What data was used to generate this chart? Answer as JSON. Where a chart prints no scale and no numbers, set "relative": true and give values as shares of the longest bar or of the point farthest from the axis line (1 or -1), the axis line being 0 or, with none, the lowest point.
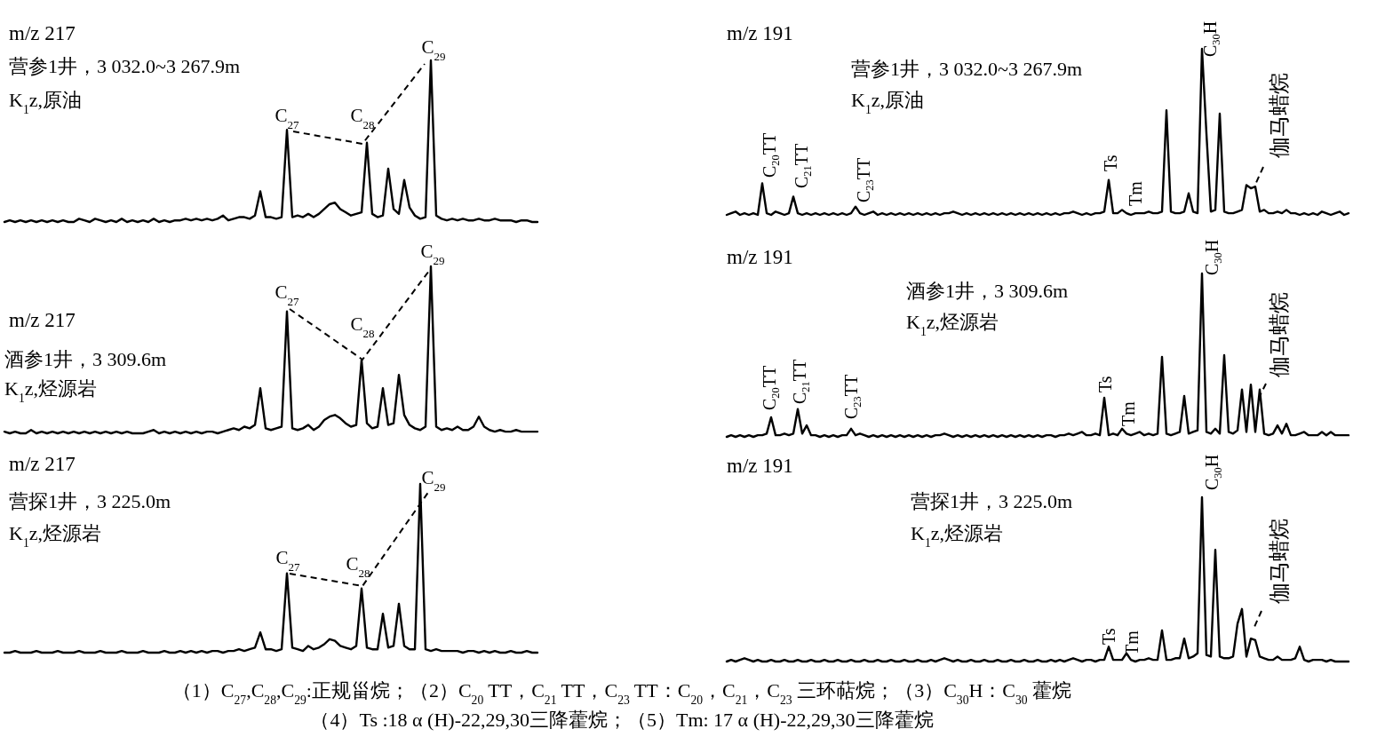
{
  "chart_data": [
    {
      "type": "line",
      "relative": true,
      "title": "m/z 217",
      "categories": [
        null,
        null,
        null,
        null,
        null,
        null,
        null,
        null,
        null,
        null,
        null,
        null,
        null,
        null,
        null,
        null,
        null,
        null,
        null,
        null,
        null,
        null,
        null,
        null,
        null,
        null,
        null,
        null,
        null,
        null,
        null,
        null,
        null,
        null,
        null,
        null,
        null,
        null,
        null,
        null,
        null,
        null,
        null,
        null,
        null,
        null,
        null,
        null,
        null,
        null,
        null,
        null,
        null,
        null,
        null,
        null,
        null,
        null,
        null,
        null,
        null,
        null,
        null,
        null,
        null,
        null,
        null,
        null,
        null,
        null,
        null,
        null,
        null,
        null,
        null,
        null,
        null,
        null,
        null,
        null,
        null,
        null,
        null,
        null,
        null,
        null,
        null,
        null,
        null,
        null,
        null,
        null,
        null,
        null,
        null,
        null,
        null,
        null,
        null,
        null,
        null
      ],
      "series": [
        {
          "color": "#000000",
          "values": [
            0.0,
            0.01,
            0.0,
            0.01,
            0.0,
            0.01,
            0.0,
            0.01,
            0.0,
            0.01,
            0.0,
            0.01,
            0.0,
            0.0,
            0.02,
            0.01,
            0.0,
            0.02,
            0.01,
            0.0,
            0.01,
            0.0,
            0.02,
            0.0,
            0.01,
            0.0,
            0.01,
            0.0,
            0.02,
            0.0,
            0.01,
            0.0,
            0.01,
            0.01,
            0.02,
            0.01,
            0.02,
            0.01,
            0.02,
            0.01,
            0.02,
            0.04,
            0.01,
            0.02,
            0.03,
            0.03,
            0.02,
            0.04,
            0.19,
            0.03,
            0.03,
            0.02,
            0.03,
            0.57,
            0.03,
            0.04,
            0.03,
            0.05,
            0.03,
            0.05,
            0.08,
            0.11,
            0.12,
            0.08,
            0.06,
            0.04,
            0.05,
            0.06,
            0.49,
            0.05,
            0.03,
            0.04,
            0.33,
            0.08,
            0.05,
            0.26,
            0.09,
            0.04,
            0.02,
            0.03,
            1.0,
            0.04,
            0.02,
            0.01,
            0.02,
            0.01,
            0.02,
            0.01,
            0.01,
            0.02,
            0.01,
            0.01,
            0.02,
            0.01,
            0.01,
            0.01,
            0.0,
            0.01,
            0.01,
            0.0,
            0.0
          ]
        }
      ],
      "annotations": [
        "营参1井，3 032.0~3 267.9m",
        "K$_{1}$z,原油",
        "C$_{27}$",
        "C$_{28}$",
        "C$_{29}$"
      ]
    },
    {
      "type": "line",
      "relative": true,
      "title": "m/z 191",
      "categories": [
        null,
        null,
        null,
        null,
        null,
        null,
        null,
        null,
        null,
        null,
        null,
        null,
        null,
        null,
        null,
        null,
        null,
        null,
        null,
        null,
        null,
        null,
        null,
        null,
        null,
        null,
        null,
        null,
        null,
        null,
        null,
        null,
        null,
        null,
        null,
        null,
        null,
        null,
        null,
        null,
        null,
        null,
        null,
        null,
        null,
        null,
        null,
        null,
        null,
        null,
        null,
        null,
        null,
        null,
        null,
        null,
        null,
        null,
        null,
        null,
        null,
        null,
        null,
        null,
        null,
        null,
        null,
        null,
        null,
        null,
        null,
        null,
        null,
        null,
        null,
        null,
        null,
        null,
        null,
        null,
        null,
        null,
        null,
        null,
        null,
        null,
        null,
        null,
        null,
        null,
        null,
        null,
        null,
        null,
        null,
        null,
        null,
        null,
        null,
        null,
        null,
        null,
        null,
        null,
        null,
        null,
        null,
        null,
        null,
        null,
        null,
        null,
        null,
        null,
        null,
        null,
        null,
        null,
        null,
        null,
        null,
        null,
        null,
        null,
        null,
        null,
        null,
        null,
        null,
        null,
        null,
        null,
        null,
        null,
        null,
        null,
        null,
        null,
        null,
        null,
        null
      ],
      "series": [
        {
          "color": "#000000",
          "values": [
            0.0,
            0.01,
            0.02,
            0.0,
            0.01,
            0.0,
            0.01,
            0.0,
            0.19,
            0.01,
            0.0,
            0.02,
            0.01,
            0.0,
            0.01,
            0.11,
            0.01,
            0.0,
            0.01,
            0.0,
            0.01,
            0.0,
            0.01,
            0.0,
            0.01,
            0.0,
            0.01,
            0.0,
            0.01,
            0.05,
            0.01,
            0.0,
            0.01,
            0.02,
            0.0,
            0.01,
            0.0,
            0.01,
            0.0,
            0.01,
            0.0,
            0.01,
            0.0,
            0.01,
            0.0,
            0.01,
            0.0,
            0.01,
            0.0,
            0.01,
            0.01,
            0.02,
            0.01,
            0.0,
            0.01,
            0.0,
            0.01,
            0.0,
            0.01,
            0.0,
            0.01,
            0.0,
            0.01,
            0.0,
            0.01,
            0.0,
            0.01,
            0.0,
            0.01,
            0.0,
            0.01,
            0.0,
            0.01,
            0.0,
            0.01,
            0.0,
            0.01,
            0.01,
            0.02,
            0.01,
            0.0,
            0.01,
            0.0,
            0.01,
            0.01,
            0.02,
            0.21,
            0.01,
            0.01,
            0.03,
            0.01,
            0.0,
            0.01,
            0.01,
            0.01,
            0.02,
            0.01,
            0.01,
            0.02,
            0.63,
            0.02,
            0.01,
            0.01,
            0.02,
            0.13,
            0.02,
            0.01,
            1.0,
            0.49,
            0.02,
            0.03,
            0.61,
            0.02,
            0.01,
            0.01,
            0.02,
            0.03,
            0.18,
            0.16,
            0.17,
            0.02,
            0.03,
            0.01,
            0.01,
            0.02,
            0.01,
            0.03,
            0.01,
            0.01,
            0.0,
            0.01,
            0.0,
            0.01,
            0.0,
            0.02,
            0.01,
            0.0,
            0.01,
            0.02,
            0.0,
            0.01
          ]
        }
      ],
      "annotations": [
        "营参1井，3 032.0~3 267.9m",
        "K$_{1}$z,原油",
        "C$_{20}$TT",
        "C$_{21}$TT",
        "C$_{23}$TT",
        "Ts",
        "Tm",
        "C$_{30}$H",
        "伽马蜡烷"
      ]
    },
    {
      "type": "line",
      "relative": true,
      "title": "m/z 217",
      "categories": [
        null,
        null,
        null,
        null,
        null,
        null,
        null,
        null,
        null,
        null,
        null,
        null,
        null,
        null,
        null,
        null,
        null,
        null,
        null,
        null,
        null,
        null,
        null,
        null,
        null,
        null,
        null,
        null,
        null,
        null,
        null,
        null,
        null,
        null,
        null,
        null,
        null,
        null,
        null,
        null,
        null,
        null,
        null,
        null,
        null,
        null,
        null,
        null,
        null,
        null,
        null,
        null,
        null,
        null,
        null,
        null,
        null,
        null,
        null,
        null,
        null,
        null,
        null,
        null,
        null,
        null,
        null,
        null,
        null,
        null,
        null,
        null,
        null,
        null,
        null,
        null,
        null,
        null,
        null,
        null,
        null,
        null,
        null,
        null,
        null,
        null,
        null,
        null,
        null,
        null,
        null,
        null,
        null,
        null,
        null,
        null,
        null,
        null,
        null,
        null,
        null
      ],
      "series": [
        {
          "color": "#000000",
          "values": [
            0.01,
            0.0,
            0.01,
            0.0,
            0.0,
            0.02,
            0.0,
            0.01,
            0.0,
            0.01,
            0.0,
            0.01,
            0.0,
            0.01,
            0.0,
            0.01,
            0.0,
            0.01,
            0.0,
            0.01,
            0.0,
            0.01,
            0.0,
            0.01,
            0.0,
            0.0,
            0.0,
            0.01,
            0.02,
            0.0,
            0.01,
            0.0,
            0.01,
            0.0,
            0.01,
            0.0,
            0.01,
            0.0,
            0.01,
            0.01,
            0.0,
            0.01,
            0.02,
            0.03,
            0.02,
            0.04,
            0.03,
            0.05,
            0.27,
            0.03,
            0.02,
            0.03,
            0.04,
            0.73,
            0.03,
            0.02,
            0.03,
            0.05,
            0.02,
            0.04,
            0.08,
            0.1,
            0.11,
            0.09,
            0.06,
            0.04,
            0.05,
            0.44,
            0.06,
            0.03,
            0.04,
            0.27,
            0.05,
            0.06,
            0.35,
            0.11,
            0.05,
            0.03,
            0.02,
            0.04,
            1.0,
            0.04,
            0.02,
            0.03,
            0.02,
            0.04,
            0.02,
            0.02,
            0.04,
            0.1,
            0.04,
            0.02,
            0.01,
            0.02,
            0.01,
            0.01,
            0.02,
            0.01,
            0.01,
            0.01,
            0.01
          ]
        }
      ],
      "annotations": [
        "酒参1井，3 309.6m",
        "K$_{1}$z,烃源岩",
        "C$_{27}$",
        "C$_{28}$",
        "C$_{29}$"
      ]
    },
    {
      "type": "line",
      "relative": true,
      "title": "m/z 191",
      "categories": [
        null,
        null,
        null,
        null,
        null,
        null,
        null,
        null,
        null,
        null,
        null,
        null,
        null,
        null,
        null,
        null,
        null,
        null,
        null,
        null,
        null,
        null,
        null,
        null,
        null,
        null,
        null,
        null,
        null,
        null,
        null,
        null,
        null,
        null,
        null,
        null,
        null,
        null,
        null,
        null,
        null,
        null,
        null,
        null,
        null,
        null,
        null,
        null,
        null,
        null,
        null,
        null,
        null,
        null,
        null,
        null,
        null,
        null,
        null,
        null,
        null,
        null,
        null,
        null,
        null,
        null,
        null,
        null,
        null,
        null,
        null,
        null,
        null,
        null,
        null,
        null,
        null,
        null,
        null,
        null,
        null,
        null,
        null,
        null,
        null,
        null,
        null,
        null,
        null,
        null,
        null,
        null,
        null,
        null,
        null,
        null,
        null,
        null,
        null,
        null,
        null,
        null,
        null,
        null,
        null,
        null,
        null,
        null,
        null,
        null,
        null,
        null,
        null,
        null,
        null,
        null,
        null,
        null,
        null,
        null,
        null,
        null,
        null,
        null,
        null,
        null,
        null,
        null,
        null,
        null,
        null,
        null,
        null,
        null,
        null,
        null,
        null,
        null,
        null,
        null,
        null
      ],
      "series": [
        {
          "color": "#000000",
          "values": [
            0.0,
            0.01,
            0.0,
            0.01,
            0.0,
            0.01,
            0.0,
            0.01,
            0.01,
            0.02,
            0.12,
            0.01,
            0.01,
            0.02,
            0.01,
            0.02,
            0.17,
            0.02,
            0.07,
            0.01,
            0.01,
            0.0,
            0.01,
            0.0,
            0.01,
            0.0,
            0.01,
            0.01,
            0.05,
            0.01,
            0.02,
            0.01,
            0.0,
            0.01,
            0.0,
            0.01,
            0.0,
            0.01,
            0.0,
            0.01,
            0.0,
            0.01,
            0.0,
            0.01,
            0.0,
            0.01,
            0.0,
            0.01,
            0.01,
            0.02,
            0.01,
            0.0,
            0.01,
            0.0,
            0.01,
            0.0,
            0.01,
            0.0,
            0.01,
            0.0,
            0.01,
            0.0,
            0.01,
            0.0,
            0.01,
            0.0,
            0.01,
            0.0,
            0.01,
            0.0,
            0.01,
            0.0,
            0.01,
            0.01,
            0.0,
            0.01,
            0.01,
            0.02,
            0.01,
            0.02,
            0.03,
            0.01,
            0.01,
            0.02,
            0.01,
            0.24,
            0.01,
            0.02,
            0.01,
            0.05,
            0.02,
            0.01,
            0.02,
            0.03,
            0.01,
            0.02,
            0.01,
            0.02,
            0.49,
            0.02,
            0.01,
            0.02,
            0.03,
            0.25,
            0.02,
            0.03,
            0.04,
            1.0,
            0.03,
            0.02,
            0.05,
            0.02,
            0.5,
            0.03,
            0.02,
            0.04,
            0.29,
            0.03,
            0.32,
            0.03,
            0.29,
            0.02,
            0.01,
            0.02,
            0.07,
            0.02,
            0.08,
            0.01,
            0.01,
            0.02,
            0.03,
            0.01,
            0.01,
            0.01,
            0.03,
            0.01,
            0.03,
            0.01,
            0.01,
            0.01,
            0.01
          ]
        }
      ],
      "annotations": [
        "酒参1井，3 309.6m",
        "K$_{1}$z,烃源岩",
        "C$_{20}$TT",
        "C$_{21}$TT",
        "C$_{23}$TT",
        "Ts",
        "Tm",
        "C$_{30}$H",
        "伽马蜡烷"
      ]
    },
    {
      "type": "line",
      "relative": true,
      "title": "m/z 217",
      "categories": [
        null,
        null,
        null,
        null,
        null,
        null,
        null,
        null,
        null,
        null,
        null,
        null,
        null,
        null,
        null,
        null,
        null,
        null,
        null,
        null,
        null,
        null,
        null,
        null,
        null,
        null,
        null,
        null,
        null,
        null,
        null,
        null,
        null,
        null,
        null,
        null,
        null,
        null,
        null,
        null,
        null,
        null,
        null,
        null,
        null,
        null,
        null,
        null,
        null,
        null,
        null,
        null,
        null,
        null,
        null,
        null,
        null,
        null,
        null,
        null,
        null,
        null,
        null,
        null,
        null,
        null,
        null,
        null,
        null,
        null,
        null,
        null,
        null,
        null,
        null,
        null,
        null,
        null,
        null,
        null,
        null,
        null,
        null,
        null,
        null,
        null,
        null,
        null,
        null,
        null,
        null,
        null,
        null,
        null,
        null,
        null,
        null,
        null,
        null,
        null,
        null
      ],
      "series": [
        {
          "color": "#000000",
          "values": [
            0.0,
            0.0,
            0.01,
            0.0,
            0.0,
            0.0,
            0.01,
            0.0,
            0.0,
            0.0,
            0.01,
            0.0,
            0.0,
            0.0,
            0.01,
            0.0,
            0.0,
            0.0,
            0.01,
            0.0,
            0.0,
            0.0,
            0.01,
            0.0,
            0.0,
            0.0,
            0.01,
            0.0,
            0.0,
            0.0,
            0.01,
            0.0,
            0.0,
            0.01,
            0.0,
            0.01,
            0.0,
            0.01,
            0.0,
            0.01,
            0.01,
            0.0,
            0.01,
            0.01,
            0.02,
            0.01,
            0.02,
            0.03,
            0.12,
            0.02,
            0.02,
            0.01,
            0.02,
            0.47,
            0.03,
            0.02,
            0.01,
            0.04,
            0.02,
            0.03,
            0.05,
            0.08,
            0.07,
            0.04,
            0.03,
            0.02,
            0.04,
            0.38,
            0.03,
            0.02,
            0.02,
            0.23,
            0.03,
            0.04,
            0.29,
            0.04,
            0.02,
            0.02,
            1.0,
            0.02,
            0.01,
            0.02,
            0.01,
            0.01,
            0.01,
            0.01,
            0.0,
            0.01,
            0.01,
            0.0,
            0.01,
            0.0,
            0.01,
            0.0,
            0.0,
            0.01,
            0.0,
            0.0,
            0.01,
            0.0,
            0.0
          ]
        }
      ],
      "annotations": [
        "营探1井，3 225.0m",
        "K$_{1}$z,烃源岩",
        "C$_{27}$",
        "C$_{28}$",
        "C$_{29}$"
      ]
    },
    {
      "type": "line",
      "relative": true,
      "title": "m/z 191",
      "categories": [
        null,
        null,
        null,
        null,
        null,
        null,
        null,
        null,
        null,
        null,
        null,
        null,
        null,
        null,
        null,
        null,
        null,
        null,
        null,
        null,
        null,
        null,
        null,
        null,
        null,
        null,
        null,
        null,
        null,
        null,
        null,
        null,
        null,
        null,
        null,
        null,
        null,
        null,
        null,
        null,
        null,
        null,
        null,
        null,
        null,
        null,
        null,
        null,
        null,
        null,
        null,
        null,
        null,
        null,
        null,
        null,
        null,
        null,
        null,
        null,
        null,
        null,
        null,
        null,
        null,
        null,
        null,
        null,
        null,
        null,
        null,
        null,
        null,
        null,
        null,
        null,
        null,
        null,
        null,
        null,
        null,
        null,
        null,
        null,
        null,
        null,
        null,
        null,
        null,
        null,
        null,
        null,
        null,
        null,
        null,
        null,
        null,
        null,
        null,
        null,
        null,
        null,
        null,
        null,
        null,
        null,
        null,
        null,
        null,
        null,
        null,
        null,
        null,
        null,
        null,
        null,
        null,
        null,
        null,
        null,
        null,
        null,
        null,
        null,
        null,
        null,
        null,
        null,
        null,
        null,
        null,
        null,
        null,
        null,
        null,
        null,
        null,
        null,
        null,
        null,
        null
      ],
      "series": [
        {
          "color": "#000000",
          "values": [
            0.0,
            0.01,
            0.0,
            0.01,
            0.02,
            0.01,
            0.0,
            0.01,
            0.0,
            0.0,
            0.01,
            0.0,
            0.0,
            0.01,
            0.0,
            0.0,
            0.01,
            0.0,
            0.0,
            0.01,
            0.0,
            0.0,
            0.01,
            0.0,
            0.0,
            0.01,
            0.0,
            0.0,
            0.01,
            0.0,
            0.0,
            0.01,
            0.0,
            0.0,
            0.01,
            0.0,
            0.0,
            0.01,
            0.0,
            0.0,
            0.01,
            0.0,
            0.0,
            0.01,
            0.0,
            0.0,
            0.01,
            0.0,
            0.01,
            0.02,
            0.01,
            0.0,
            0.01,
            0.0,
            0.0,
            0.01,
            0.0,
            0.0,
            0.01,
            0.0,
            0.0,
            0.01,
            0.0,
            0.0,
            0.01,
            0.0,
            0.0,
            0.01,
            0.0,
            0.0,
            0.01,
            0.0,
            0.0,
            0.01,
            0.0,
            0.01,
            0.0,
            0.01,
            0.02,
            0.01,
            0.0,
            0.01,
            0.01,
            0.0,
            0.01,
            0.01,
            0.09,
            0.01,
            0.01,
            0.01,
            0.05,
            0.01,
            0.0,
            0.01,
            0.01,
            0.02,
            0.01,
            0.01,
            0.19,
            0.01,
            0.01,
            0.02,
            0.02,
            0.14,
            0.02,
            0.03,
            0.05,
            1.0,
            0.04,
            0.03,
            0.68,
            0.03,
            0.02,
            0.02,
            0.03,
            0.23,
            0.32,
            0.03,
            0.14,
            0.13,
            0.03,
            0.02,
            0.01,
            0.01,
            0.03,
            0.01,
            0.01,
            0.01,
            0.02,
            0.09,
            0.01,
            0.0,
            0.01,
            0.01,
            0.01,
            0.0,
            0.01,
            0.0,
            0.0,
            0.0,
            0.0
          ]
        }
      ],
      "annotations": [
        "营探1井，3 225.0m",
        "K$_{1}$z,烃源岩",
        "Ts",
        "Tm",
        "C$_{30}$H",
        "伽马蜡烷",
        "（1）C$_{27}$,C$_{28}$,C$_{29}$:正规甾烷；（2）C$_{20}$ TT，C$_{21}$ TT，C$_{23}$ TT：C$_{20}$，C$_{21}$，C$_{23}$ 三环萜烷；（3）C$_{30}$H：C$_{30}$ 藿烷",
        "（4）Ts :18 α (H)-22,29,30三降藿烷；（5）Tm: 17 α (H)-22,29,30三降藿烷"
      ]
    }
  ]
}
